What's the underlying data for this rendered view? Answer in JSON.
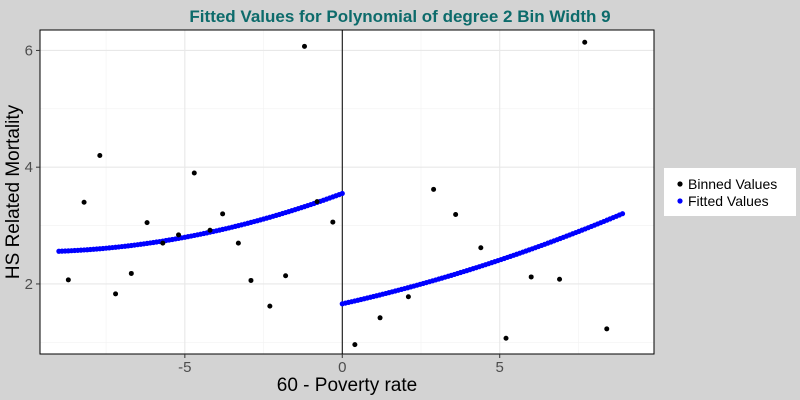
{
  "chart_data": {
    "type": "scatter",
    "title": "Fitted Values for Polynomial of degree 2 Bin Width 9",
    "xlabel": "60 - Poverty rate",
    "ylabel": "HS Related Mortality",
    "xlim": [
      -9.6,
      9.9
    ],
    "ylim": [
      0.8,
      6.35
    ],
    "xticks": [
      -5,
      0,
      5
    ],
    "yticks": [
      2,
      4,
      6
    ],
    "grid": true,
    "vline_at": 0,
    "legend_position": "right",
    "series": [
      {
        "name": "Binned Values",
        "color": "#000000",
        "points": [
          [
            -8.7,
            2.07
          ],
          [
            -8.2,
            3.4
          ],
          [
            -7.7,
            4.2
          ],
          [
            -7.2,
            1.83
          ],
          [
            -6.7,
            2.18
          ],
          [
            -6.2,
            3.05
          ],
          [
            -5.7,
            2.7
          ],
          [
            -5.2,
            2.84
          ],
          [
            -4.7,
            3.9
          ],
          [
            -4.2,
            2.92
          ],
          [
            -3.8,
            3.2
          ],
          [
            -3.3,
            2.7
          ],
          [
            -2.9,
            2.06
          ],
          [
            -2.3,
            1.62
          ],
          [
            -1.8,
            2.14
          ],
          [
            -1.2,
            6.07
          ],
          [
            -0.8,
            3.41
          ],
          [
            -0.3,
            3.06
          ],
          [
            0.4,
            0.96
          ],
          [
            1.2,
            1.42
          ],
          [
            2.1,
            1.78
          ],
          [
            2.9,
            3.62
          ],
          [
            3.6,
            3.19
          ],
          [
            4.4,
            2.62
          ],
          [
            5.2,
            1.07
          ],
          [
            6.0,
            2.12
          ],
          [
            6.9,
            2.08
          ],
          [
            7.7,
            6.14
          ],
          [
            8.4,
            1.23
          ]
        ]
      },
      {
        "name": "Fitted Values",
        "color": "#0000ff",
        "segments": [
          {
            "x_range": [
              -9.0,
              0.0
            ],
            "coef": [
              3.55,
              0.2,
              0.01
            ]
          },
          {
            "x_range": [
              0.0,
              8.9
            ],
            "coef": [
              1.66,
              0.12,
              0.006
            ]
          }
        ]
      }
    ]
  }
}
